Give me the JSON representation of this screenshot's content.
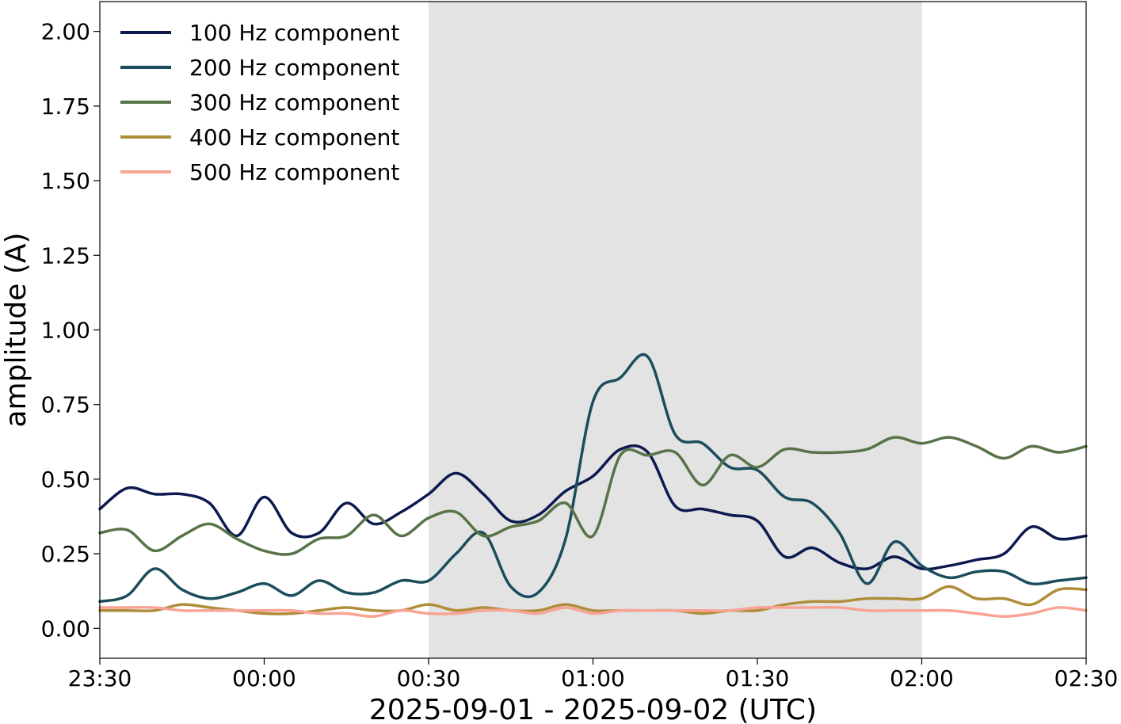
{
  "chart_data": {
    "type": "line",
    "xlabel": "2025-09-01 - 2025-09-02 (UTC)",
    "ylabel": "amplitude (A)",
    "xlim": [
      "2025-09-01T23:30",
      "2025-09-02T02:30"
    ],
    "ylim": [
      -0.1,
      2.1
    ],
    "x_ticks": [
      "23:30",
      "00:00",
      "00:30",
      "01:00",
      "01:30",
      "02:00",
      "02:30"
    ],
    "y_ticks": [
      "0.00",
      "0.25",
      "0.50",
      "0.75",
      "1.00",
      "1.25",
      "1.50",
      "1.75",
      "2.00"
    ],
    "grid": false,
    "legend_position": "top-left",
    "shaded_region": {
      "start": "2025-09-02T00:30",
      "end": "2025-09-02T02:00",
      "color": "#e3e3e3"
    },
    "x": [
      "2025-09-01T23:30",
      "2025-09-01T23:35",
      "2025-09-01T23:40",
      "2025-09-01T23:45",
      "2025-09-01T23:50",
      "2025-09-01T23:55",
      "2025-09-02T00:00",
      "2025-09-02T00:05",
      "2025-09-02T00:10",
      "2025-09-02T00:15",
      "2025-09-02T00:20",
      "2025-09-02T00:25",
      "2025-09-02T00:30",
      "2025-09-02T00:35",
      "2025-09-02T00:40",
      "2025-09-02T00:45",
      "2025-09-02T00:50",
      "2025-09-02T00:55",
      "2025-09-02T01:00",
      "2025-09-02T01:05",
      "2025-09-02T01:10",
      "2025-09-02T01:15",
      "2025-09-02T01:20",
      "2025-09-02T01:25",
      "2025-09-02T01:30",
      "2025-09-02T01:35",
      "2025-09-02T01:40",
      "2025-09-02T01:45",
      "2025-09-02T01:50",
      "2025-09-02T01:55",
      "2025-09-02T02:00",
      "2025-09-02T02:05",
      "2025-09-02T02:10",
      "2025-09-02T02:15",
      "2025-09-02T02:20",
      "2025-09-02T02:25",
      "2025-09-02T02:30"
    ],
    "series": [
      {
        "name": "100 Hz component",
        "color": "#0d1a4f",
        "values": [
          0.4,
          0.47,
          0.45,
          0.45,
          0.42,
          0.31,
          0.44,
          0.32,
          0.32,
          0.42,
          0.35,
          0.39,
          0.45,
          0.52,
          0.45,
          0.36,
          0.38,
          0.46,
          0.51,
          0.6,
          0.59,
          0.41,
          0.4,
          0.38,
          0.36,
          0.24,
          0.27,
          0.22,
          0.2,
          0.24,
          0.2,
          0.21,
          0.23,
          0.25,
          0.34,
          0.3,
          0.31
        ]
      },
      {
        "name": "200 Hz component",
        "color": "#1b4d5c",
        "values": [
          0.09,
          0.11,
          0.2,
          0.13,
          0.1,
          0.12,
          0.15,
          0.11,
          0.16,
          0.12,
          0.12,
          0.16,
          0.16,
          0.25,
          0.32,
          0.14,
          0.12,
          0.3,
          0.76,
          0.84,
          0.91,
          0.65,
          0.62,
          0.54,
          0.53,
          0.44,
          0.42,
          0.32,
          0.15,
          0.29,
          0.21,
          0.17,
          0.19,
          0.19,
          0.15,
          0.16,
          0.17
        ]
      },
      {
        "name": "300 Hz component",
        "color": "#577347",
        "values": [
          0.32,
          0.33,
          0.26,
          0.31,
          0.35,
          0.3,
          0.26,
          0.25,
          0.3,
          0.31,
          0.38,
          0.31,
          0.37,
          0.39,
          0.31,
          0.34,
          0.36,
          0.42,
          0.31,
          0.58,
          0.58,
          0.59,
          0.48,
          0.58,
          0.54,
          0.6,
          0.59,
          0.59,
          0.6,
          0.64,
          0.62,
          0.64,
          0.61,
          0.57,
          0.61,
          0.59,
          0.61
        ]
      },
      {
        "name": "400 Hz component",
        "color": "#b08d3a",
        "values": [
          0.06,
          0.06,
          0.06,
          0.08,
          0.07,
          0.06,
          0.05,
          0.05,
          0.06,
          0.07,
          0.06,
          0.06,
          0.08,
          0.06,
          0.07,
          0.06,
          0.06,
          0.08,
          0.06,
          0.06,
          0.06,
          0.06,
          0.05,
          0.06,
          0.06,
          0.08,
          0.09,
          0.09,
          0.1,
          0.1,
          0.1,
          0.14,
          0.1,
          0.1,
          0.08,
          0.13,
          0.13
        ]
      },
      {
        "name": "500 Hz component",
        "color": "#f8a494",
        "values": [
          0.07,
          0.07,
          0.07,
          0.06,
          0.06,
          0.06,
          0.06,
          0.06,
          0.05,
          0.05,
          0.04,
          0.06,
          0.05,
          0.05,
          0.06,
          0.06,
          0.05,
          0.07,
          0.05,
          0.06,
          0.06,
          0.06,
          0.06,
          0.06,
          0.07,
          0.07,
          0.07,
          0.07,
          0.06,
          0.06,
          0.06,
          0.06,
          0.05,
          0.04,
          0.05,
          0.07,
          0.06
        ]
      }
    ]
  }
}
